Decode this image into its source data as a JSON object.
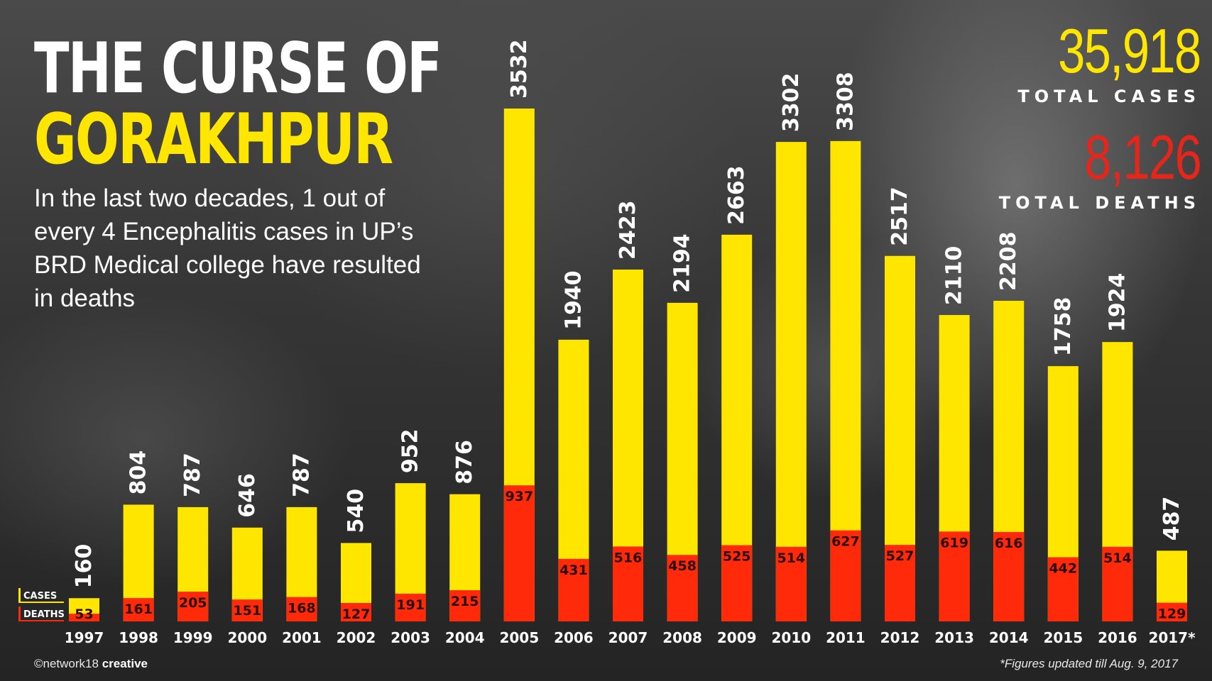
{
  "header": {
    "title_line1": "THE CURSE OF",
    "title_line2": "GORAKHPUR",
    "subtitle": "In the last two decades, 1 out of every 4 Encephalitis cases in UP’s BRD Medical college have resulted in deaths"
  },
  "totals": {
    "cases_value": "35,918",
    "cases_label": "TOTAL CASES",
    "deaths_value": "8,126",
    "deaths_label": "TOTAL DEATHS"
  },
  "legend": {
    "cases": "CASES",
    "deaths": "DEATHS"
  },
  "footer": {
    "credit_prefix": "©network18",
    "credit_brand": "creative",
    "note": "*Figures updated till Aug. 9, 2017"
  },
  "colors": {
    "cases": "#ffe600",
    "deaths": "#ff2a0a",
    "deaths_total": "#e6251b"
  },
  "chart_data": {
    "type": "bar",
    "stacked": "overlay",
    "categories": [
      "1997",
      "1998",
      "1999",
      "2000",
      "2001",
      "2002",
      "2003",
      "2004",
      "2005",
      "2006",
      "2007",
      "2008",
      "2009",
      "2010",
      "2011",
      "2012",
      "2013",
      "2014",
      "2015",
      "2016",
      "2017*"
    ],
    "series": [
      {
        "name": "CASES",
        "values": [
          160,
          804,
          787,
          646,
          787,
          540,
          952,
          876,
          3532,
          1940,
          2423,
          2194,
          2663,
          3302,
          3308,
          2517,
          2110,
          2208,
          1758,
          1924,
          487
        ]
      },
      {
        "name": "DEATHS",
        "values": [
          53,
          161,
          205,
          151,
          168,
          127,
          191,
          215,
          937,
          431,
          516,
          458,
          525,
          514,
          627,
          527,
          619,
          616,
          442,
          514,
          129
        ]
      }
    ],
    "title": "",
    "xlabel": "",
    "ylabel": "",
    "ylim": [
      0,
      3532
    ],
    "grid": false,
    "legend": "bottom-left"
  }
}
